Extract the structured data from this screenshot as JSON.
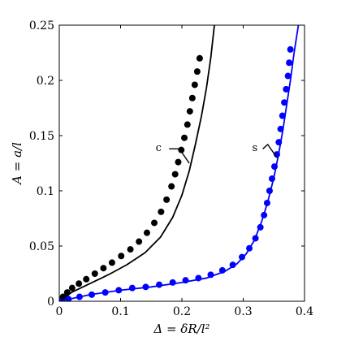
{
  "chart_data": {
    "type": "scatter",
    "xlabel": "Δ = δR/l²",
    "ylabel": "A = a/l",
    "xlim": [
      0,
      0.4
    ],
    "ylim": [
      0,
      0.25
    ],
    "xticks": [
      0,
      0.1,
      0.2,
      0.3,
      0.4
    ],
    "xtick_labels": [
      "0",
      "0.1",
      "0.2",
      "0.3",
      "0.4"
    ],
    "yticks": [
      0,
      0.05,
      0.1,
      0.15,
      0.2,
      0.25
    ],
    "ytick_labels": [
      "0",
      "0.05",
      "0.1",
      "0.15",
      "0.2",
      "0.25"
    ],
    "grid": false,
    "series": [
      {
        "kind": "points",
        "color": "#000000",
        "x": [
          0.0,
          0.006,
          0.013,
          0.021,
          0.032,
          0.044,
          0.058,
          0.072,
          0.086,
          0.101,
          0.116,
          0.13,
          0.143,
          0.155,
          0.166,
          0.175,
          0.183,
          0.189,
          0.194,
          0.199,
          0.204,
          0.209,
          0.213,
          0.217,
          0.221,
          0.225,
          0.229
        ],
        "y": [
          0.0,
          0.004,
          0.008,
          0.012,
          0.016,
          0.02,
          0.025,
          0.03,
          0.035,
          0.041,
          0.047,
          0.054,
          0.062,
          0.071,
          0.081,
          0.092,
          0.104,
          0.115,
          0.126,
          0.137,
          0.148,
          0.16,
          0.172,
          0.184,
          0.196,
          0.208,
          0.22
        ]
      },
      {
        "kind": "line",
        "color": "#000000",
        "x": [
          0.0,
          0.02,
          0.05,
          0.08,
          0.11,
          0.14,
          0.165,
          0.185,
          0.2,
          0.212,
          0.222,
          0.232,
          0.24,
          0.247,
          0.253
        ],
        "y": [
          0.0,
          0.008,
          0.016,
          0.024,
          0.033,
          0.044,
          0.058,
          0.076,
          0.096,
          0.118,
          0.142,
          0.168,
          0.193,
          0.22,
          0.25
        ]
      },
      {
        "kind": "points",
        "color": "#0000ff",
        "x": [
          0.0,
          0.015,
          0.033,
          0.053,
          0.075,
          0.097,
          0.119,
          0.141,
          0.163,
          0.185,
          0.206,
          0.227,
          0.247,
          0.266,
          0.283,
          0.298,
          0.31,
          0.32,
          0.328,
          0.334,
          0.339,
          0.343,
          0.347,
          0.351,
          0.355,
          0.358,
          0.361,
          0.364,
          0.367,
          0.37,
          0.373,
          0.375,
          0.377
        ],
        "y": [
          0.0,
          0.002,
          0.004,
          0.006,
          0.008,
          0.01,
          0.012,
          0.013,
          0.015,
          0.017,
          0.019,
          0.021,
          0.024,
          0.028,
          0.033,
          0.04,
          0.048,
          0.057,
          0.067,
          0.078,
          0.089,
          0.1,
          0.111,
          0.122,
          0.133,
          0.144,
          0.156,
          0.168,
          0.18,
          0.192,
          0.204,
          0.216,
          0.228
        ]
      },
      {
        "kind": "line",
        "color": "#0000ff",
        "x": [
          0.0,
          0.05,
          0.1,
          0.15,
          0.2,
          0.24,
          0.27,
          0.29,
          0.305,
          0.318,
          0.33,
          0.34,
          0.35,
          0.358,
          0.365,
          0.371,
          0.377,
          0.383,
          0.39
        ],
        "y": [
          0.0,
          0.006,
          0.01,
          0.013,
          0.017,
          0.021,
          0.027,
          0.034,
          0.043,
          0.055,
          0.072,
          0.09,
          0.112,
          0.134,
          0.156,
          0.178,
          0.2,
          0.225,
          0.25
        ]
      }
    ],
    "annotations": [
      {
        "text": "c",
        "x": 0.162,
        "y": 0.136
      },
      {
        "text": "s",
        "x": 0.319,
        "y": 0.136
      }
    ]
  }
}
